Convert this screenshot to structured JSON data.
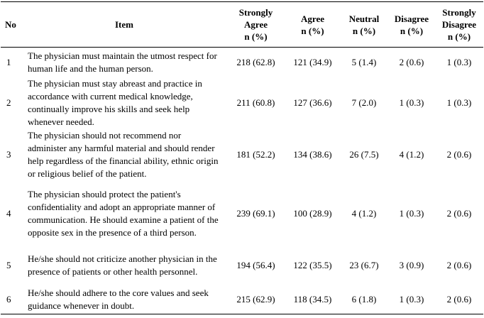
{
  "table": {
    "header": [
      {
        "label": "No"
      },
      {
        "label": "Item"
      },
      {
        "label": "Strongly Agree",
        "unit": "n (%)"
      },
      {
        "label": "Agree",
        "unit": "n (%)"
      },
      {
        "label": "Neutral",
        "unit": "n (%)"
      },
      {
        "label": "Disagree",
        "unit": "n (%)"
      },
      {
        "label": "Strongly Disagree",
        "unit": "n (%)"
      }
    ],
    "rows": [
      [
        "1",
        "The physician must maintain the utmost respect for human life and the human person.",
        "218 (62.8)",
        "121 (34.9)",
        "5 (1.4)",
        "2 (0.6)",
        "1 (0.3)"
      ],
      [
        "2",
        "The physician must stay abreast and practice in accordance with current medical knowledge, continually improve his skills and seek help whenever needed.",
        "211 (60.8)",
        "127 (36.6)",
        "7 (2.0)",
        "1 (0.3)",
        "1 (0.3)"
      ],
      [
        "3",
        "The physician should not recommend nor administer any harmful material and should render help regardless of the financial ability, ethnic origin or religious belief of the patient.",
        "181 (52.2)",
        "134 (38.6)",
        "26 (7.5)",
        "4 (1.2)",
        "2 (0.6)"
      ],
      [
        "4",
        "The physician should protect the patient's confidentiality and adopt an appropriate manner of communication. He should examine a patient of the opposite sex in the presence of a third person.",
        "239 (69.1)",
        "100 (28.9)",
        "4 (1.2)",
        "1 (0.3)",
        "2 (0.6)"
      ],
      [
        "5",
        "He/she should not criticize another physician in the presence of patients or other health personnel.",
        "194 (56.4)",
        "122 (35.5)",
        "23 (6.7)",
        "3 (0.9)",
        "2 (0.6)"
      ],
      [
        "6",
        "He/she should adhere to the core values and seek guidance whenever in doubt.",
        "215 (62.9)",
        "118 (34.5)",
        "6 (1.8)",
        "1 (0.3)",
        "2 (0.6)"
      ]
    ]
  }
}
